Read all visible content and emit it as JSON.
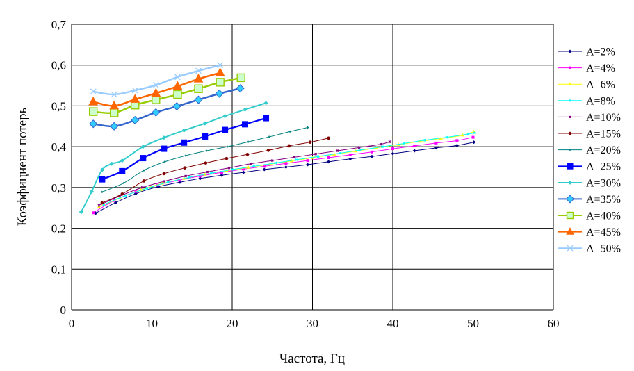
{
  "chart_data": {
    "type": "line",
    "xlabel": "Частота, Гц",
    "ylabel": "Коэффициент потерь",
    "xlim": [
      0,
      60
    ],
    "ylim": [
      0,
      0.7
    ],
    "x_ticks": [
      "0",
      "10",
      "20",
      "30",
      "40",
      "50",
      "60"
    ],
    "y_ticks": [
      "0",
      "0,1",
      "0,2",
      "0,3",
      "0,4",
      "0,5",
      "0,6",
      "0,7"
    ],
    "grid": "horizontal and vertical",
    "legend_position": "right",
    "series": [
      {
        "name": "A=2%",
        "color": "#000080",
        "marker": "diamond",
        "markerSize": 3,
        "lineWidth": 1,
        "points": [
          [
            3,
            0.237
          ],
          [
            5.5,
            0.263
          ],
          [
            8,
            0.285
          ],
          [
            10.8,
            0.302
          ],
          [
            13.5,
            0.313
          ],
          [
            16,
            0.322
          ],
          [
            18.7,
            0.33
          ],
          [
            21.4,
            0.337
          ],
          [
            24,
            0.344
          ],
          [
            26.7,
            0.35
          ],
          [
            29.4,
            0.356
          ],
          [
            32,
            0.363
          ],
          [
            34.7,
            0.37
          ],
          [
            37.4,
            0.376
          ],
          [
            40,
            0.383
          ],
          [
            42.7,
            0.39
          ],
          [
            45.4,
            0.397
          ],
          [
            48,
            0.403
          ],
          [
            50.1,
            0.411
          ]
        ]
      },
      {
        "name": "A=4%",
        "color": "#ff00ff",
        "marker": "square",
        "markerSize": 3,
        "lineWidth": 1,
        "points": [
          [
            2.7,
            0.238
          ],
          [
            5.3,
            0.268
          ],
          [
            8,
            0.29
          ],
          [
            10.7,
            0.306
          ],
          [
            13.4,
            0.318
          ],
          [
            16,
            0.328
          ],
          [
            18.7,
            0.337
          ],
          [
            21.4,
            0.345
          ],
          [
            24,
            0.352
          ],
          [
            26.7,
            0.359
          ],
          [
            29.4,
            0.366
          ],
          [
            32,
            0.373
          ],
          [
            34.7,
            0.38
          ],
          [
            37.4,
            0.387
          ],
          [
            40,
            0.395
          ],
          [
            42.7,
            0.402
          ],
          [
            45.4,
            0.409
          ],
          [
            48,
            0.415
          ],
          [
            50,
            0.423
          ]
        ]
      },
      {
        "name": "A=6%",
        "color": "#ffff00",
        "marker": "triangle",
        "markerSize": 3,
        "lineWidth": 1,
        "points": [
          [
            3.4,
            0.252
          ],
          [
            6,
            0.274
          ],
          [
            8.6,
            0.294
          ],
          [
            11.3,
            0.31
          ],
          [
            14,
            0.322
          ],
          [
            16.6,
            0.332
          ],
          [
            19.3,
            0.341
          ],
          [
            22,
            0.349
          ],
          [
            24.7,
            0.357
          ],
          [
            27.4,
            0.365
          ],
          [
            30,
            0.373
          ],
          [
            32.7,
            0.381
          ],
          [
            35.4,
            0.389
          ],
          [
            38,
            0.397
          ],
          [
            40.7,
            0.405
          ],
          [
            43.4,
            0.413
          ],
          [
            46,
            0.42
          ],
          [
            48.7,
            0.428
          ],
          [
            50.1,
            0.437
          ]
        ]
      },
      {
        "name": "A=8%",
        "color": "#00ffff",
        "marker": "x",
        "markerSize": 3,
        "lineWidth": 1,
        "points": [
          [
            4,
            0.258
          ],
          [
            6.7,
            0.28
          ],
          [
            9.4,
            0.298
          ],
          [
            12,
            0.313
          ],
          [
            14.7,
            0.325
          ],
          [
            17.4,
            0.335
          ],
          [
            20,
            0.344
          ],
          [
            22.7,
            0.352
          ],
          [
            25.4,
            0.36
          ],
          [
            28,
            0.368
          ],
          [
            30.7,
            0.376
          ],
          [
            33.4,
            0.384
          ],
          [
            36,
            0.392
          ],
          [
            38.7,
            0.4
          ],
          [
            41.4,
            0.408
          ],
          [
            44,
            0.416
          ],
          [
            46.7,
            0.423
          ],
          [
            49.4,
            0.431
          ],
          [
            50.2,
            0.434
          ]
        ]
      },
      {
        "name": "A=10%",
        "color": "#800080",
        "marker": "star",
        "markerSize": 3,
        "lineWidth": 1,
        "points": [
          [
            3.4,
            0.256
          ],
          [
            6,
            0.279
          ],
          [
            8.8,
            0.3
          ],
          [
            11.5,
            0.315
          ],
          [
            14.2,
            0.328
          ],
          [
            16.9,
            0.338
          ],
          [
            19.6,
            0.348
          ],
          [
            22.3,
            0.358
          ],
          [
            25,
            0.366
          ],
          [
            27.7,
            0.374
          ],
          [
            30.4,
            0.382
          ],
          [
            33.1,
            0.39
          ],
          [
            35.8,
            0.398
          ],
          [
            38.5,
            0.406
          ],
          [
            39.6,
            0.412
          ]
        ]
      },
      {
        "name": "A=15%",
        "color": "#800000",
        "marker": "circle",
        "markerSize": 3,
        "lineWidth": 1,
        "points": [
          [
            3.8,
            0.262
          ],
          [
            6.3,
            0.284
          ],
          [
            9,
            0.316
          ],
          [
            11.5,
            0.334
          ],
          [
            14.1,
            0.348
          ],
          [
            16.7,
            0.36
          ],
          [
            19.3,
            0.371
          ],
          [
            21.9,
            0.381
          ],
          [
            24.5,
            0.391
          ],
          [
            27.1,
            0.402
          ],
          [
            29.7,
            0.411
          ],
          [
            32,
            0.421
          ]
        ]
      },
      {
        "name": "A=20%",
        "color": "#008080",
        "marker": "plus",
        "markerSize": 3,
        "lineWidth": 1,
        "points": [
          [
            3.8,
            0.289
          ],
          [
            6.5,
            0.311
          ],
          [
            9,
            0.342
          ],
          [
            11.6,
            0.363
          ],
          [
            14.2,
            0.378
          ],
          [
            16.8,
            0.39
          ],
          [
            19.4,
            0.4
          ],
          [
            22,
            0.412
          ],
          [
            24.6,
            0.424
          ],
          [
            27.2,
            0.437
          ],
          [
            29.4,
            0.447
          ]
        ]
      },
      {
        "name": "A=25%",
        "color": "#0000ff",
        "marker": "square",
        "markerSize": 8,
        "lineWidth": 2.2,
        "points": [
          [
            3.8,
            0.32
          ],
          [
            6.3,
            0.34
          ],
          [
            8.9,
            0.372
          ],
          [
            11.5,
            0.395
          ],
          [
            14,
            0.41
          ],
          [
            16.6,
            0.425
          ],
          [
            19.1,
            0.441
          ],
          [
            21.6,
            0.455
          ],
          [
            24.2,
            0.47
          ]
        ]
      },
      {
        "name": "A=30%",
        "color": "#33cccc",
        "marker": "diamond",
        "markerSize": 4,
        "lineWidth": 2,
        "points": [
          [
            1.2,
            0.24
          ],
          [
            2.5,
            0.29
          ],
          [
            3.8,
            0.343
          ],
          [
            5,
            0.358
          ],
          [
            6.3,
            0.366
          ],
          [
            8.9,
            0.4
          ],
          [
            11.5,
            0.422
          ],
          [
            14,
            0.44
          ],
          [
            16.6,
            0.457
          ],
          [
            19.1,
            0.475
          ],
          [
            21.6,
            0.491
          ],
          [
            24.2,
            0.507
          ]
        ]
      },
      {
        "name": "A=35%",
        "color": "#3366cc",
        "fill": "#33ccff",
        "marker": "diamond",
        "markerSize": 9,
        "lineWidth": 2.5,
        "points": [
          [
            2.7,
            0.456
          ],
          [
            5.3,
            0.45
          ],
          [
            7.9,
            0.465
          ],
          [
            10.5,
            0.484
          ],
          [
            13.1,
            0.499
          ],
          [
            15.8,
            0.515
          ],
          [
            18.4,
            0.53
          ],
          [
            21,
            0.543
          ]
        ]
      },
      {
        "name": "A=40%",
        "color": "#99cc00",
        "fill": "#ccffcc",
        "marker": "square",
        "markerSize": 11,
        "lineWidth": 2.5,
        "points": [
          [
            2.7,
            0.486
          ],
          [
            5.3,
            0.483
          ],
          [
            7.9,
            0.502
          ],
          [
            10.5,
            0.515
          ],
          [
            13.2,
            0.528
          ],
          [
            15.8,
            0.542
          ],
          [
            18.5,
            0.558
          ],
          [
            21.1,
            0.569
          ]
        ]
      },
      {
        "name": "A=45%",
        "color": "#ff6600",
        "marker": "triangle",
        "markerSize": 11,
        "lineWidth": 2.5,
        "points": [
          [
            2.7,
            0.51
          ],
          [
            5.3,
            0.5
          ],
          [
            7.9,
            0.516
          ],
          [
            10.5,
            0.531
          ],
          [
            13.2,
            0.548
          ],
          [
            15.8,
            0.566
          ],
          [
            18.5,
            0.581
          ]
        ]
      },
      {
        "name": "A=50%",
        "color": "#99ccff",
        "marker": "x",
        "markerSize": 8,
        "lineWidth": 2.5,
        "points": [
          [
            2.7,
            0.535
          ],
          [
            5.3,
            0.528
          ],
          [
            7.9,
            0.538
          ],
          [
            10.5,
            0.551
          ],
          [
            13.2,
            0.571
          ],
          [
            15.8,
            0.586
          ],
          [
            18.5,
            0.6
          ]
        ]
      }
    ]
  }
}
